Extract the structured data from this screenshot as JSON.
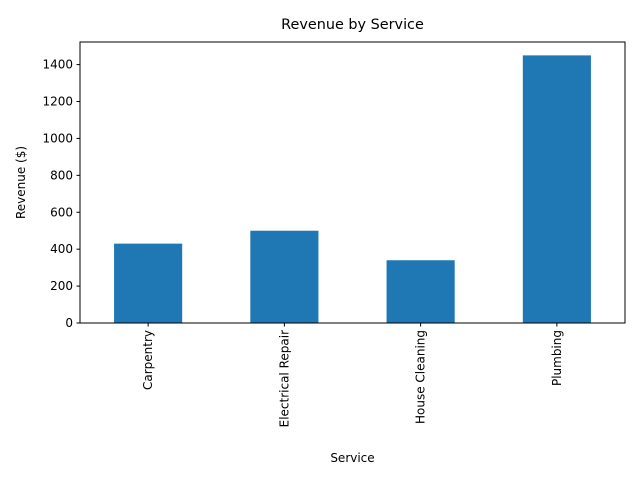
{
  "chart_data": {
    "type": "bar",
    "title": "Revenue by Service",
    "xlabel": "Service",
    "ylabel": "Revenue ($)",
    "categories": [
      "Carpentry",
      "Electrical Repair",
      "House Cleaning",
      "Plumbing"
    ],
    "values": [
      430,
      500,
      340,
      1450
    ],
    "ylim": [
      0,
      1522.5
    ],
    "yticks": [
      0,
      200,
      400,
      600,
      800,
      1000,
      1200,
      1400
    ],
    "bar_color": "#1f77b4",
    "grid": false,
    "legend": "none"
  }
}
